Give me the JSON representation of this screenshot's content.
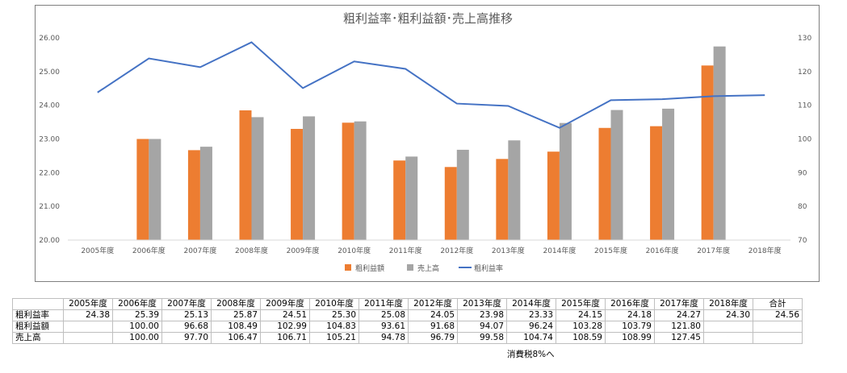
{
  "chart_data": {
    "type": "bar",
    "title": "粗利益率･粗利益額･売上高推移",
    "categories": [
      "2005年度",
      "2006年度",
      "2007年度",
      "2008年度",
      "2009年度",
      "2010年度",
      "2011年度",
      "2012年度",
      "2013年度",
      "2014年度",
      "2015年度",
      "2016年度",
      "2017年度",
      "2018年度"
    ],
    "y_left": {
      "min": 20.0,
      "max": 26.0,
      "ticks": [
        "20.00",
        "21.00",
        "22.00",
        "23.00",
        "24.00",
        "25.00",
        "26.00"
      ]
    },
    "y_right": {
      "min": 70,
      "max": 130,
      "ticks": [
        "70",
        "80",
        "90",
        "100",
        "110",
        "120",
        "130"
      ]
    },
    "series": [
      {
        "name": "粗利益額",
        "type": "bar",
        "axis": "right",
        "color": "#ed7d31",
        "values": [
          null,
          100.0,
          96.68,
          108.49,
          102.99,
          104.83,
          93.61,
          91.68,
          94.07,
          96.24,
          103.28,
          103.79,
          121.8,
          null
        ]
      },
      {
        "name": "売上高",
        "type": "bar",
        "axis": "right",
        "color": "#a5a5a5",
        "values": [
          null,
          100.0,
          97.7,
          106.47,
          106.71,
          105.21,
          94.78,
          96.79,
          99.58,
          104.74,
          108.59,
          108.99,
          127.45,
          null
        ]
      },
      {
        "name": "粗利益率",
        "type": "line",
        "axis": "left",
        "color": "#4472c4",
        "values": [
          24.38,
          25.39,
          25.13,
          25.87,
          24.51,
          25.3,
          25.08,
          24.05,
          23.98,
          23.33,
          24.15,
          24.18,
          24.27,
          24.3
        ]
      }
    ],
    "legend_position": "bottom",
    "grid": false
  },
  "table": {
    "header": [
      "2005年度",
      "2006年度",
      "2007年度",
      "2008年度",
      "2009年度",
      "2010年度",
      "2011年度",
      "2012年度",
      "2013年度",
      "2014年度",
      "2015年度",
      "2016年度",
      "2017年度",
      "2018年度",
      "合計"
    ],
    "rows": [
      {
        "label": "粗利益率",
        "cells": [
          "24.38",
          "25.39",
          "25.13",
          "25.87",
          "24.51",
          "25.30",
          "25.08",
          "24.05",
          "23.98",
          "23.33",
          "24.15",
          "24.18",
          "24.27",
          "24.30",
          "24.56"
        ]
      },
      {
        "label": "粗利益額",
        "cells": [
          "",
          "100.00",
          "96.68",
          "108.49",
          "102.99",
          "104.83",
          "93.61",
          "91.68",
          "94.07",
          "96.24",
          "103.28",
          "103.79",
          "121.80",
          "",
          ""
        ]
      },
      {
        "label": "売上高",
        "cells": [
          "",
          "100.00",
          "97.70",
          "106.47",
          "106.71",
          "105.21",
          "94.78",
          "96.79",
          "99.58",
          "104.74",
          "108.59",
          "108.99",
          "127.45",
          "",
          ""
        ]
      }
    ]
  },
  "note": "消費税8%へ"
}
